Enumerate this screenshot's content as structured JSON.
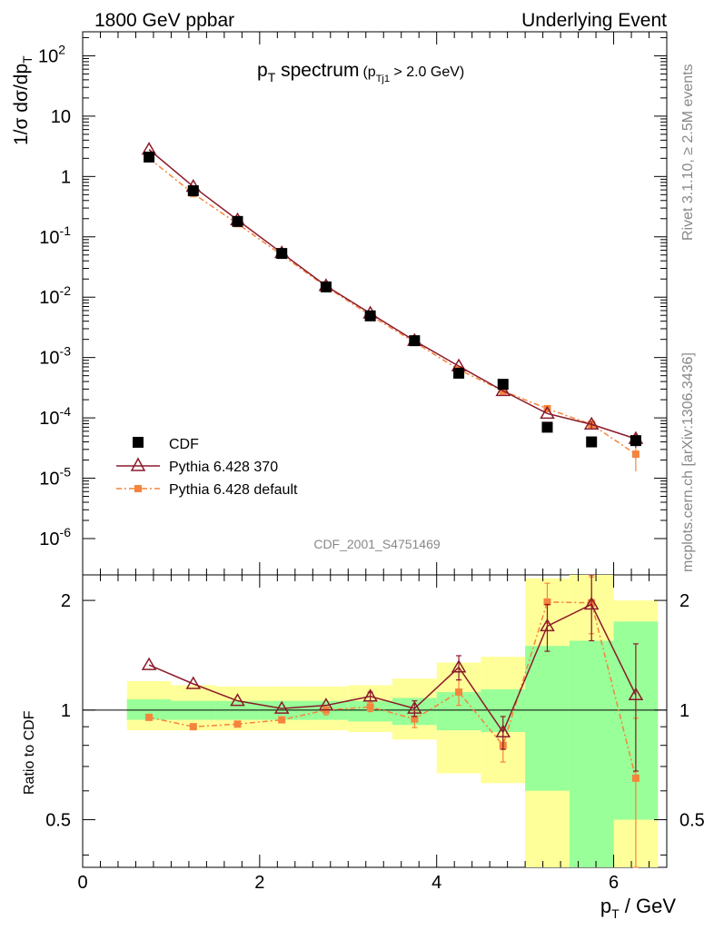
{
  "header": {
    "left": "1800 GeV ppbar",
    "right": "Underlying Event"
  },
  "side": {
    "rivet": "Rivet 3.1.10, ≥ 2.5M events",
    "mcplots": "mcplots.cern.ch [arXiv:1306.3436]"
  },
  "watermark": "CDF_2001_S4751469",
  "title": {
    "main": "p",
    "main_sub": "T",
    "main_rest": " spectrum",
    "cut_open": "(p",
    "cut_sub": "Tj1",
    "cut_rest": " > 2.0 GeV)"
  },
  "ylabel_top": "1/σ dσ/dp",
  "ylabel_top_sub": "T",
  "ylabel_bottom": "Ratio to CDF",
  "xlabel": "p",
  "xlabel_sub": "T",
  "xlabel_rest": " / GeV",
  "legend": [
    "CDF",
    "Pythia 6.428 370",
    "Pythia 6.428 default"
  ],
  "colors": {
    "cdf": "#000000",
    "p370": "#8b1a2a",
    "pdef": "#f5843c",
    "band_inner": "#99ff99",
    "band_outer": "#ffff99"
  },
  "chart_data": [
    {
      "type": "line",
      "title": "pT spectrum (pTj1 > 2.0 GeV)",
      "xlabel": "pT / GeV",
      "ylabel": "1/σ dσ/dpT",
      "yscale": "log",
      "xlim": [
        0,
        6.6
      ],
      "ylim": [
        2.5e-07,
        250
      ],
      "x_ticks": [
        "0",
        "2",
        "4",
        "6"
      ],
      "y_ticks": [
        "10^-6",
        "10^-5",
        "10^-4",
        "10^-3",
        "10^-2",
        "10^-1",
        "1",
        "10",
        "10^2"
      ],
      "x": [
        0.75,
        1.25,
        1.75,
        2.25,
        2.75,
        3.25,
        3.75,
        4.25,
        4.75,
        5.25,
        5.75,
        6.25
      ],
      "bin_edges": [
        0.5,
        1.0,
        1.5,
        2.0,
        2.5,
        3.0,
        3.5,
        4.0,
        4.5,
        5.0,
        5.5,
        6.0,
        6.5
      ],
      "series": [
        {
          "name": "CDF",
          "marker": "square",
          "values": [
            2.1,
            0.58,
            0.18,
            0.053,
            0.0148,
            0.0049,
            0.0019,
            0.00055,
            0.00036,
            7e-05,
            4e-05,
            4.2e-05
          ]
        },
        {
          "name": "Pythia 6.428 370",
          "marker": "triangle",
          "values": [
            2.8,
            0.68,
            0.19,
            0.054,
            0.0154,
            0.0054,
            0.0019,
            0.00072,
            0.00028,
            0.000118,
            7.8e-05,
            4.5e-05
          ],
          "yerr": [
            0,
            0,
            0,
            0,
            0,
            0,
            0,
            0,
            0,
            0,
            1e-05,
            1.3e-05
          ]
        },
        {
          "name": "Pythia 6.428 default",
          "marker": "filled-square",
          "values": [
            2.0,
            0.52,
            0.165,
            0.05,
            0.0149,
            0.005,
            0.0018,
            0.00063,
            0.00028,
            0.000142,
            7.8e-05,
            2.5e-05
          ],
          "yerr": [
            0,
            0,
            0,
            0,
            0,
            0,
            0,
            0,
            0,
            1.5e-05,
            1.2e-05,
            1.2e-05
          ]
        }
      ]
    },
    {
      "type": "line",
      "ylabel": "Ratio to CDF",
      "yscale": "log",
      "xlim": [
        0,
        6.6
      ],
      "ylim": [
        0.37,
        2.35
      ],
      "y_ticks": [
        "0.5",
        "1",
        "2"
      ],
      "x": [
        0.75,
        1.25,
        1.75,
        2.25,
        2.75,
        3.25,
        3.75,
        4.25,
        4.75,
        5.25,
        5.75,
        6.25
      ],
      "bin_edges": [
        0.5,
        1.0,
        1.5,
        2.0,
        2.5,
        3.0,
        3.5,
        4.0,
        4.5,
        5.0,
        5.5,
        6.0,
        6.5
      ],
      "band_inner": [
        [
          0.94,
          1.07
        ],
        [
          0.94,
          1.06
        ],
        [
          0.94,
          1.06
        ],
        [
          0.94,
          1.06
        ],
        [
          0.94,
          1.06
        ],
        [
          0.93,
          1.06
        ],
        [
          0.91,
          1.08
        ],
        [
          0.88,
          1.12
        ],
        [
          0.87,
          1.14
        ],
        [
          0.37,
          1.5
        ],
        [
          0.37,
          1.55
        ],
        [
          0.37,
          1.75
        ]
      ],
      "band_outer": [
        [
          0.88,
          1.2
        ],
        [
          0.88,
          1.17
        ],
        [
          0.88,
          1.16
        ],
        [
          0.88,
          1.16
        ],
        [
          0.88,
          1.16
        ],
        [
          0.87,
          1.17
        ],
        [
          0.83,
          1.22
        ],
        [
          0.67,
          1.35
        ],
        [
          0.63,
          1.4
        ],
        [
          0.37,
          2.3
        ],
        [
          0.37,
          2.35
        ],
        [
          0.37,
          2.0
        ]
      ],
      "band_inner_lower_override": [
        null,
        null,
        null,
        null,
        null,
        null,
        null,
        null,
        null,
        0.6,
        0.37,
        0.5
      ],
      "series": [
        {
          "name": "Pythia 6.428 370",
          "values": [
            1.33,
            1.18,
            1.06,
            1.01,
            1.03,
            1.09,
            1.01,
            1.31,
            0.87,
            1.7,
            1.95,
            1.1
          ],
          "yerr": [
            0,
            0,
            0,
            0,
            0,
            0.03,
            0.05,
            0.1,
            0.09,
            0.25,
            0.4,
            0.42
          ]
        },
        {
          "name": "Pythia 6.428 default",
          "values": [
            0.955,
            0.9,
            0.915,
            0.94,
            1.0,
            1.02,
            0.945,
            1.12,
            0.8,
            1.98,
            1.97,
            0.65
          ],
          "yerr": [
            0,
            0,
            0,
            0,
            0.03,
            0.03,
            0.05,
            0.09,
            0.08,
            0.25,
            0.35,
            0.3
          ]
        }
      ]
    }
  ]
}
